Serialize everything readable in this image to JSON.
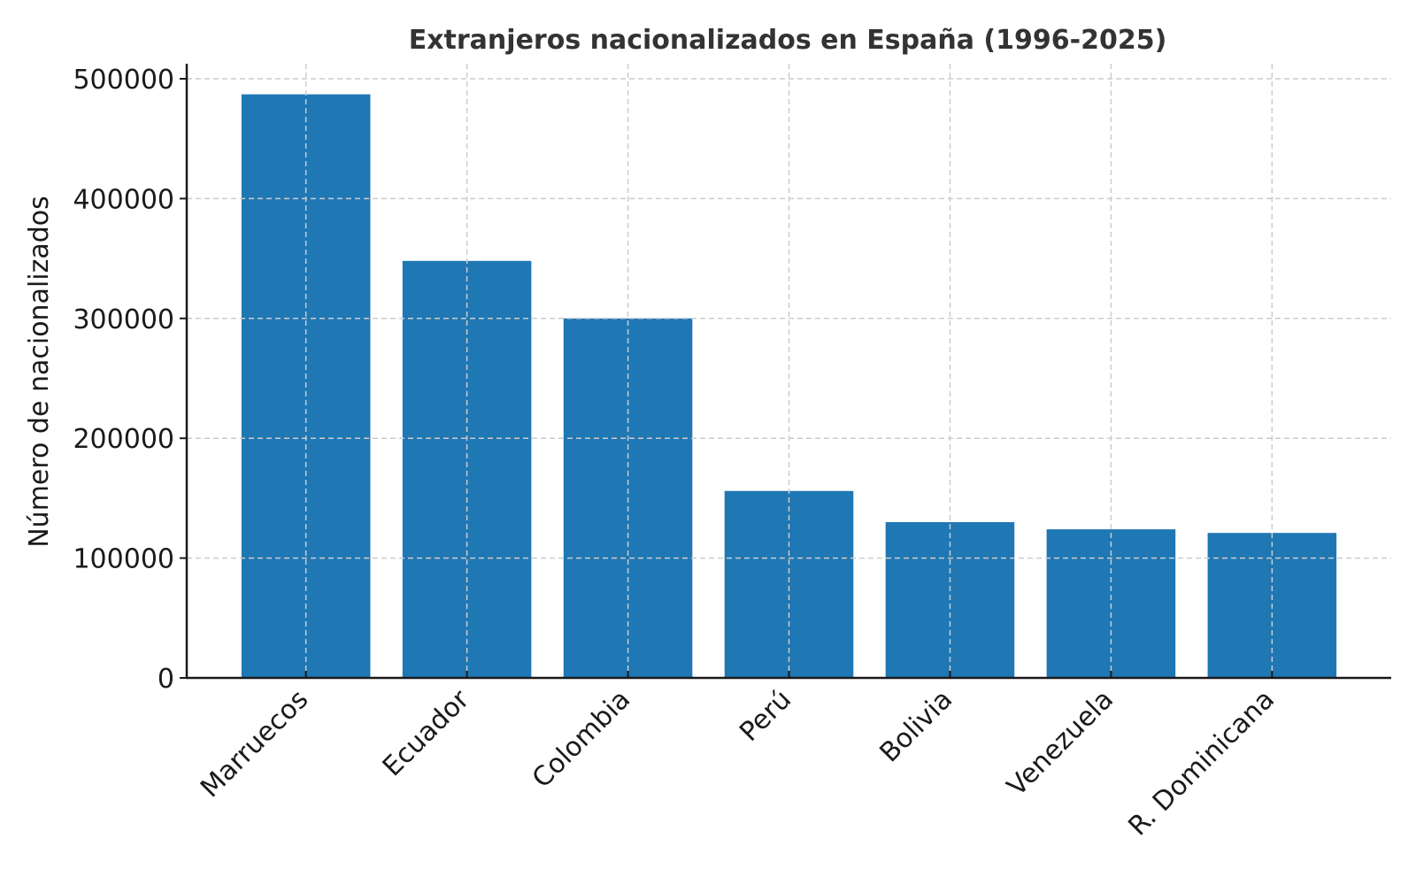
{
  "chart_data": {
    "type": "bar",
    "title": "Extranjeros nacionalizados en España (1996-2025)",
    "xlabel": "",
    "ylabel": "Número de nacionalizados",
    "categories": [
      "Marruecos",
      "Ecuador",
      "Colombia",
      "Perú",
      "Bolivia",
      "Venezuela",
      "R. Dominicana"
    ],
    "values": [
      487000,
      348000,
      300000,
      156000,
      130000,
      124000,
      121000
    ],
    "ylim": [
      0,
      510000
    ],
    "yticks": [
      0,
      100000,
      200000,
      300000,
      400000,
      500000
    ],
    "ytick_labels": [
      "0",
      "100000",
      "200000",
      "300000",
      "400000",
      "500000"
    ],
    "xtick_rotation": 45,
    "grid": true,
    "legend": "none",
    "colors": {
      "bar": "#1f77b4",
      "grid": "#cccccc",
      "axis": "#1a1a1a"
    }
  }
}
